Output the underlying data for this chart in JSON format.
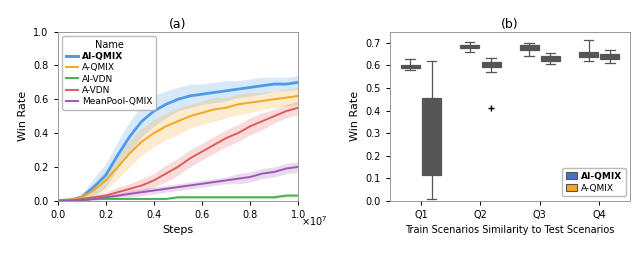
{
  "left": {
    "title": "(a)",
    "xlabel": "Steps",
    "ylabel": "Win Rate",
    "xlim": [
      0,
      10000000.0
    ],
    "ylim": [
      0,
      1.0
    ],
    "xticks": [
      0,
      2000000,
      4000000,
      6000000,
      8000000,
      10000000
    ],
    "xtick_labels": [
      "0.0",
      "0.2",
      "0.4",
      "0.6",
      "0.8",
      "1.0"
    ],
    "yticks": [
      0.0,
      0.2,
      0.4,
      0.6,
      0.8,
      1.0
    ],
    "series": [
      {
        "name": "AI-QMIX",
        "color": "#4C9BE8",
        "bold": true,
        "mean": [
          0,
          0.005,
          0.02,
          0.08,
          0.15,
          0.27,
          0.38,
          0.47,
          0.53,
          0.57,
          0.6,
          0.62,
          0.63,
          0.64,
          0.65,
          0.66,
          0.67,
          0.68,
          0.69,
          0.69,
          0.7
        ],
        "std": [
          0,
          0.005,
          0.02,
          0.05,
          0.07,
          0.08,
          0.09,
          0.09,
          0.09,
          0.08,
          0.07,
          0.07,
          0.06,
          0.06,
          0.06,
          0.05,
          0.05,
          0.05,
          0.04,
          0.04,
          0.04
        ]
      },
      {
        "name": "A-QMIX",
        "color": "#F5A623",
        "bold": false,
        "mean": [
          0,
          0.005,
          0.02,
          0.06,
          0.12,
          0.2,
          0.28,
          0.35,
          0.4,
          0.44,
          0.47,
          0.5,
          0.52,
          0.54,
          0.55,
          0.57,
          0.58,
          0.59,
          0.6,
          0.61,
          0.62
        ],
        "std": [
          0,
          0.005,
          0.02,
          0.04,
          0.06,
          0.07,
          0.08,
          0.08,
          0.08,
          0.08,
          0.08,
          0.07,
          0.07,
          0.07,
          0.06,
          0.06,
          0.06,
          0.05,
          0.05,
          0.05,
          0.05
        ]
      },
      {
        "name": "AI-VDN",
        "color": "#4CAF50",
        "bold": false,
        "mean": [
          0,
          0.0,
          0.0,
          0.01,
          0.01,
          0.01,
          0.01,
          0.01,
          0.01,
          0.01,
          0.02,
          0.02,
          0.02,
          0.02,
          0.02,
          0.02,
          0.02,
          0.02,
          0.02,
          0.03,
          0.03
        ],
        "std": [
          0,
          0.0,
          0.0,
          0.005,
          0.005,
          0.005,
          0.005,
          0.005,
          0.005,
          0.005,
          0.01,
          0.01,
          0.01,
          0.01,
          0.01,
          0.01,
          0.01,
          0.01,
          0.01,
          0.01,
          0.01
        ]
      },
      {
        "name": "A-VDN",
        "color": "#E05C5C",
        "bold": false,
        "mean": [
          0,
          0.0,
          0.01,
          0.02,
          0.03,
          0.05,
          0.07,
          0.09,
          0.12,
          0.16,
          0.2,
          0.25,
          0.29,
          0.33,
          0.37,
          0.4,
          0.44,
          0.47,
          0.5,
          0.53,
          0.55
        ],
        "std": [
          0,
          0.0,
          0.01,
          0.01,
          0.02,
          0.03,
          0.03,
          0.04,
          0.04,
          0.05,
          0.05,
          0.05,
          0.05,
          0.05,
          0.05,
          0.05,
          0.05,
          0.05,
          0.04,
          0.04,
          0.04
        ]
      },
      {
        "name": "MeanPool-QMIX",
        "color": "#9B59B6",
        "bold": false,
        "mean": [
          0,
          0.0,
          0.005,
          0.01,
          0.02,
          0.03,
          0.04,
          0.05,
          0.06,
          0.07,
          0.08,
          0.09,
          0.1,
          0.11,
          0.12,
          0.13,
          0.14,
          0.16,
          0.17,
          0.19,
          0.2
        ],
        "std": [
          0,
          0.0,
          0.005,
          0.01,
          0.01,
          0.01,
          0.02,
          0.02,
          0.02,
          0.02,
          0.02,
          0.02,
          0.02,
          0.02,
          0.02,
          0.03,
          0.03,
          0.03,
          0.03,
          0.03,
          0.03
        ]
      }
    ]
  },
  "right": {
    "title": "(b)",
    "xlabel": "Train Scenarios Similarity to Test Scenarios",
    "ylabel": "Win Rate",
    "ylim": [
      0,
      0.75
    ],
    "yticks": [
      0.0,
      0.1,
      0.2,
      0.3,
      0.4,
      0.5,
      0.6,
      0.7
    ],
    "categories": [
      "Q1",
      "Q2",
      "Q3",
      "Q4"
    ],
    "ai_qmix_color": "#4472C4",
    "a_qmix_color": "#F5A623",
    "edge_color": "#555555",
    "median_color": "#555555",
    "boxes": {
      "AI-QMIX": {
        "Q1": {
          "med": 0.595,
          "q1": 0.588,
          "q3": 0.601,
          "whislo": 0.578,
          "whishi": 0.63,
          "fliers": []
        },
        "Q2": {
          "med": 0.685,
          "q1": 0.676,
          "q3": 0.693,
          "whislo": 0.66,
          "whishi": 0.703,
          "fliers": []
        },
        "Q3": {
          "med": 0.679,
          "q1": 0.668,
          "q3": 0.689,
          "whislo": 0.644,
          "whishi": 0.7,
          "fliers": []
        },
        "Q4": {
          "med": 0.648,
          "q1": 0.637,
          "q3": 0.659,
          "whislo": 0.618,
          "whishi": 0.712,
          "fliers": []
        }
      },
      "A-QMIX": {
        "Q1": {
          "med": 0.235,
          "q1": 0.115,
          "q3": 0.455,
          "whislo": 0.008,
          "whishi": 0.62,
          "fliers": []
        },
        "Q2": {
          "med": 0.605,
          "q1": 0.592,
          "q3": 0.615,
          "whislo": 0.572,
          "whishi": 0.635,
          "fliers": [
            0.41
          ]
        },
        "Q3": {
          "med": 0.632,
          "q1": 0.622,
          "q3": 0.641,
          "whislo": 0.606,
          "whishi": 0.656,
          "fliers": []
        },
        "Q4": {
          "med": 0.64,
          "q1": 0.63,
          "q3": 0.652,
          "whislo": 0.613,
          "whishi": 0.668,
          "fliers": []
        }
      }
    }
  },
  "fig_width": 6.4,
  "fig_height": 2.64,
  "dpi": 100
}
